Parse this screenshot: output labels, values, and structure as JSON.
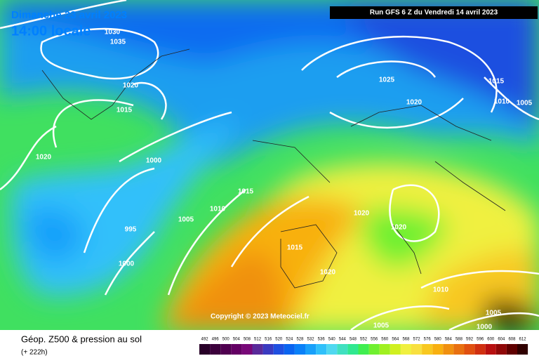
{
  "header": {
    "date": "Dimanche 23 avril 2023",
    "time": "14:00 locale",
    "run": "Run GFS 6 Z du Vendredi 14 avril 2023"
  },
  "isobars": [
    "1030",
    "1035",
    "1020",
    "1015",
    "1020",
    "1000",
    "995",
    "1000",
    "1005",
    "1010",
    "1015",
    "1015",
    "1020",
    "1020",
    "1020",
    "1025",
    "1020",
    "1015",
    "1010",
    "1005",
    "1010",
    "1005",
    "1000",
    "1005"
  ],
  "copyright": "Copyright © 2023 Meteociel.fr",
  "legend": {
    "title": "Géop. Z500 & pression au sol",
    "lead": "(+ 222h)",
    "levels": [
      492,
      496,
      500,
      504,
      508,
      512,
      516,
      520,
      524,
      528,
      532,
      536,
      540,
      544,
      548,
      552,
      556,
      560,
      564,
      568,
      572,
      576,
      580,
      584,
      588,
      592,
      596,
      600,
      604,
      608,
      612
    ],
    "colors": [
      "#280028",
      "#3c003c",
      "#500050",
      "#640064",
      "#780878",
      "#5a2a9a",
      "#3a3ac0",
      "#1f4fe0",
      "#0a64f0",
      "#0a80f8",
      "#18a0fa",
      "#30c0fa",
      "#50d8f0",
      "#40e0c0",
      "#30e890",
      "#40ee50",
      "#70f030",
      "#a0f020",
      "#d0f020",
      "#f0f040",
      "#f8e040",
      "#f8c820",
      "#f8b010",
      "#f09010",
      "#e87010",
      "#e05010",
      "#d03010",
      "#b81010",
      "#900808",
      "#600000",
      "#300000"
    ]
  }
}
